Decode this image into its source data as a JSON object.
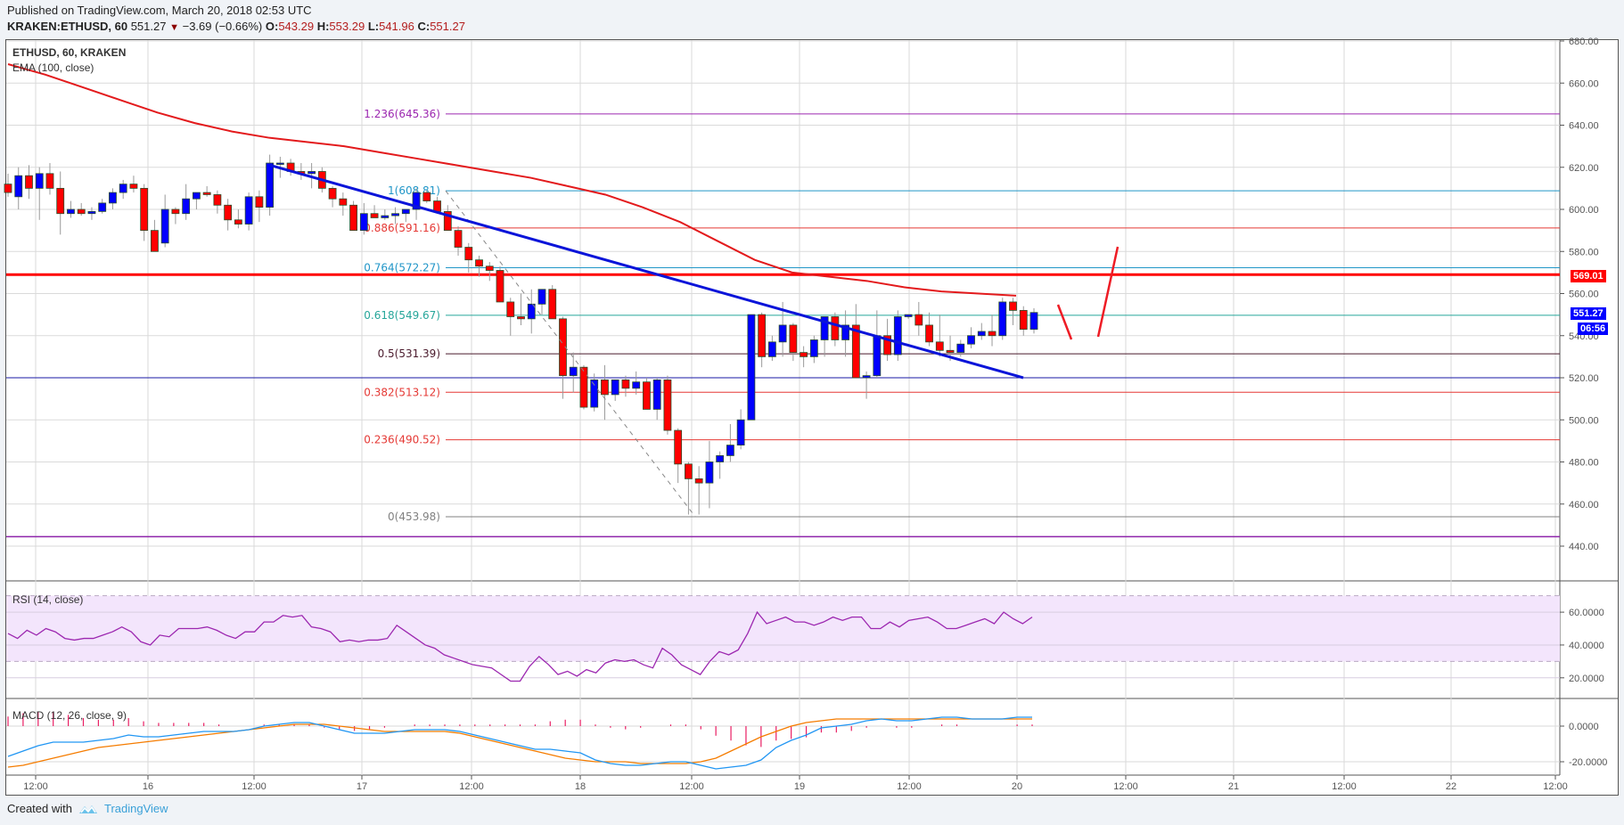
{
  "header": {
    "published": "Published on TradingView.com, March 20, 2018 02:53 UTC",
    "symbol": "KRAKEN:ETHUSD, 60",
    "last": "551.27",
    "change_arrow": "▼",
    "change": "−3.69 (−0.66%)",
    "o_label": "O:",
    "o": "543.29",
    "h_label": "H:",
    "h": "553.29",
    "l_label": "L:",
    "l": "541.96",
    "c_label": "C:",
    "c": "551.27"
  },
  "pane_legend": {
    "title": "ETHUSD, 60, KRAKEN",
    "ema": "EMA (100, close)",
    "rsi": "RSI (14, close)",
    "macd": "MACD (12, 26, close, 9)"
  },
  "badges": {
    "resistance": "569.01",
    "last_price": "551.27",
    "countdown": "06:56"
  },
  "footer": {
    "created_with": "Created with",
    "brand": "TradingView"
  },
  "colors": {
    "up": "#0000ff",
    "down": "#ff0000",
    "ema": "#e31a1c",
    "trendline": "#0a14d9",
    "resistance": "#ff0000",
    "rsi_line": "#9c27b0",
    "rsi_band": "#f3e5fc",
    "macd": "#2196f3",
    "signal": "#f57c00",
    "histogram": "#e91e63"
  },
  "chart_data": [
    {
      "type": "candlestick",
      "title": "ETHUSD, 60, KRAKEN",
      "xlabel": "",
      "ylabel": "Price (USD)",
      "ylim": [
        430,
        685
      ],
      "y_ticks": [
        "680.00",
        "660.00",
        "640.00",
        "620.00",
        "600.00",
        "580.00",
        "560.00",
        "540.00",
        "520.00",
        "500.00",
        "480.00",
        "460.00",
        "440.00"
      ],
      "x_ticks": [
        "12:00",
        "16",
        "12:00",
        "17",
        "12:00",
        "18",
        "12:00",
        "19",
        "12:00",
        "20",
        "12:00",
        "21",
        "12:00",
        "22",
        "12:00"
      ],
      "fibonacci": [
        {
          "level": "1.236",
          "price": 645.36,
          "label": "1.236(645.36)",
          "color": "#9c27b0"
        },
        {
          "level": "1",
          "price": 608.81,
          "label": "1(608.81)",
          "color": "#2196c8"
        },
        {
          "level": "0.886",
          "price": 591.16,
          "label": "0.886(591.16)",
          "color": "#e53935"
        },
        {
          "level": "0.764",
          "price": 572.27,
          "label": "0.764(572.27)",
          "color": "#2196c8"
        },
        {
          "level": "0.618",
          "price": 549.67,
          "label": "0.618(549.67)",
          "color": "#26a69a"
        },
        {
          "level": "0.5",
          "price": 531.39,
          "label": "0.5(531.39)",
          "color": "#4a1a2c"
        },
        {
          "level": "0.382",
          "price": 513.12,
          "label": "0.382(513.12)",
          "color": "#e53935"
        },
        {
          "level": "0.236",
          "price": 490.52,
          "label": "0.236(490.52)",
          "color": "#e53935"
        },
        {
          "level": "0",
          "price": 453.98,
          "label": "0(453.98)",
          "color": "#808080"
        }
      ],
      "horizontal_lines": [
        {
          "price": 569.01,
          "color": "#ff0000",
          "width": 3,
          "note": "resistance"
        },
        {
          "price": 520.0,
          "color": "#1a1aa6",
          "width": 1
        },
        {
          "price": 444.5,
          "color": "#8e24aa",
          "width": 1.5
        }
      ],
      "trendline": {
        "from": {
          "x": "16 ~13:00",
          "price": 621
        },
        "to": {
          "x": "20 ~01:00",
          "price": 520
        }
      },
      "ema_100": [
        669,
        664,
        658,
        652,
        646,
        641,
        637,
        634,
        632,
        630,
        627,
        624,
        621,
        618,
        615,
        611,
        607,
        601,
        594,
        585,
        576,
        570,
        568,
        566,
        563,
        561,
        560,
        559
      ],
      "candles_ohlc_approx": [
        [
          612,
          617,
          606,
          608
        ],
        [
          606,
          620,
          600,
          616
        ],
        [
          616,
          621,
          605,
          610
        ],
        [
          610,
          620,
          595,
          617
        ],
        [
          617,
          622,
          607,
          610
        ],
        [
          610,
          618,
          588,
          598
        ],
        [
          598,
          604,
          596,
          600
        ],
        [
          600,
          603,
          597,
          598
        ],
        [
          598,
          601,
          595,
          599
        ],
        [
          599,
          605,
          598,
          603
        ],
        [
          603,
          610,
          600,
          608
        ],
        [
          608,
          614,
          605,
          612
        ],
        [
          612,
          616,
          608,
          610
        ],
        [
          610,
          612,
          585,
          590
        ],
        [
          590,
          595,
          582,
          580
        ],
        [
          584,
          607,
          582,
          600
        ],
        [
          600,
          601,
          593,
          598
        ],
        [
          598,
          612,
          595,
          605
        ],
        [
          605,
          608,
          600,
          608
        ],
        [
          608,
          611,
          606,
          607
        ],
        [
          607,
          609,
          598,
          602
        ],
        [
          602,
          605,
          590,
          595
        ],
        [
          595,
          600,
          591,
          593
        ],
        [
          593,
          608,
          590,
          606
        ],
        [
          606,
          609,
          594,
          601
        ],
        [
          601,
          626,
          597,
          622
        ],
        [
          622,
          625,
          615,
          622
        ],
        [
          622,
          624,
          616,
          618
        ],
        [
          618,
          622,
          614,
          617
        ],
        [
          617,
          622,
          610,
          618
        ],
        [
          618,
          620,
          608,
          610
        ],
        [
          610,
          611,
          601,
          605
        ],
        [
          605,
          608,
          597,
          602
        ],
        [
          602,
          604,
          590,
          590
        ],
        [
          590,
          603,
          588,
          598
        ],
        [
          598,
          602,
          596,
          596
        ],
        [
          596,
          600,
          595,
          597
        ],
        [
          597,
          601,
          593,
          598
        ],
        [
          598,
          600,
          594,
          600
        ],
        [
          600,
          610,
          595,
          608
        ],
        [
          608,
          609,
          603,
          604
        ],
        [
          604,
          606,
          598,
          599
        ],
        [
          599,
          602,
          592,
          590
        ],
        [
          590,
          592,
          578,
          582
        ],
        [
          582,
          584,
          570,
          576
        ],
        [
          576,
          578,
          568,
          573
        ],
        [
          573,
          575,
          566,
          571
        ],
        [
          571,
          573,
          557,
          556
        ],
        [
          556,
          558,
          540,
          549
        ],
        [
          549,
          560,
          545,
          548
        ],
        [
          548,
          562,
          541,
          555
        ],
        [
          555,
          562,
          550,
          562
        ],
        [
          562,
          564,
          548,
          548
        ],
        [
          548,
          549,
          510,
          521
        ],
        [
          521,
          532,
          513,
          525
        ],
        [
          525,
          526,
          505,
          506
        ],
        [
          506,
          522,
          504,
          519
        ],
        [
          519,
          526,
          500,
          512
        ],
        [
          512,
          519,
          509,
          519
        ],
        [
          519,
          521,
          511,
          515
        ],
        [
          515,
          523,
          512,
          518
        ],
        [
          518,
          520,
          505,
          505
        ],
        [
          505,
          520,
          500,
          519
        ],
        [
          519,
          521,
          493,
          495
        ],
        [
          495,
          496,
          470,
          479
        ],
        [
          479,
          480,
          455,
          472
        ],
        [
          472,
          478,
          455,
          470
        ],
        [
          470,
          490,
          458,
          480
        ],
        [
          480,
          485,
          472,
          483
        ],
        [
          483,
          498,
          480,
          488
        ],
        [
          488,
          505,
          486,
          500
        ],
        [
          500,
          550,
          500,
          550
        ],
        [
          550,
          551,
          525,
          530
        ],
        [
          530,
          540,
          528,
          537
        ],
        [
          537,
          556,
          530,
          545
        ],
        [
          545,
          546,
          528,
          532
        ],
        [
          532,
          535,
          525,
          530
        ],
        [
          530,
          540,
          527,
          538
        ],
        [
          538,
          549,
          530,
          549
        ],
        [
          549,
          551,
          535,
          538
        ],
        [
          538,
          552,
          530,
          545
        ],
        [
          545,
          555,
          522,
          520
        ],
        [
          520,
          523,
          510,
          521
        ],
        [
          521,
          552,
          520,
          540
        ],
        [
          540,
          548,
          528,
          531
        ],
        [
          531,
          552,
          528,
          549
        ],
        [
          549,
          550,
          548,
          550
        ],
        [
          550,
          556,
          540,
          545
        ],
        [
          545,
          551,
          535,
          537
        ],
        [
          537,
          550,
          530,
          533
        ],
        [
          533,
          540,
          528,
          532
        ],
        [
          532,
          538,
          530,
          536
        ],
        [
          536,
          544,
          534,
          540
        ],
        [
          540,
          546,
          538,
          542
        ],
        [
          542,
          550,
          535,
          540
        ],
        [
          540,
          558,
          538,
          556
        ],
        [
          556,
          558,
          545,
          552
        ],
        [
          552,
          554,
          540,
          543
        ],
        [
          543,
          553,
          541,
          551
        ]
      ]
    },
    {
      "type": "line",
      "title": "RSI (14, close)",
      "ylim": [
        15,
        72
      ],
      "y_ticks": [
        "60.0000",
        "40.0000",
        "20.0000"
      ],
      "bands": {
        "upper": 70,
        "lower": 30
      },
      "values": [
        47,
        44,
        49,
        46,
        50,
        48,
        44,
        43,
        44,
        44,
        46,
        48,
        51,
        48,
        42,
        40,
        46,
        45,
        50,
        50,
        50,
        51,
        49,
        46,
        44,
        48,
        48,
        54,
        54,
        58,
        57,
        58,
        51,
        50,
        48,
        42,
        43,
        42,
        43,
        43,
        44,
        52,
        48,
        44,
        40,
        38,
        34,
        32,
        30,
        28,
        27,
        26,
        22,
        18,
        18,
        27,
        33,
        28,
        22,
        24,
        21,
        25,
        23,
        29,
        31,
        30,
        31,
        28,
        26,
        38,
        34,
        28,
        25,
        22,
        30,
        36,
        34,
        37,
        47,
        60,
        53,
        55,
        57,
        54,
        54,
        52,
        54,
        57,
        55,
        57,
        57,
        50,
        50,
        54,
        51,
        55,
        56,
        57,
        54,
        50,
        50,
        52,
        54,
        56,
        53,
        60,
        56,
        53,
        57
      ]
    },
    {
      "type": "line",
      "title": "MACD (12, 26, close, 9)",
      "ylim": [
        -26,
        16
      ],
      "y_ticks": [
        "0.0000",
        "-20.0000"
      ],
      "series": [
        {
          "name": "MACD",
          "values": [
            -17,
            -14,
            -11,
            -9,
            -9,
            -9,
            -8,
            -7,
            -5,
            -6,
            -6,
            -5,
            -4,
            -3,
            -3,
            -3,
            -2,
            0,
            1,
            2,
            2,
            0,
            -2,
            -4,
            -4,
            -4,
            -3,
            -2,
            -2,
            -2,
            -3,
            -5,
            -7,
            -9,
            -11,
            -13,
            -13,
            -14,
            -15,
            -19,
            -21,
            -22,
            -22,
            -21,
            -20,
            -20,
            -22,
            -24,
            -23,
            -22,
            -19,
            -12,
            -8,
            -5,
            -1,
            0,
            1,
            3,
            4,
            3,
            3,
            4,
            5,
            5,
            4,
            4,
            4,
            5,
            5
          ]
        },
        {
          "name": "Signal",
          "values": [
            -23,
            -22,
            -20,
            -18,
            -16,
            -14,
            -12,
            -11,
            -10,
            -9,
            -8,
            -7,
            -6,
            -5,
            -4,
            -3,
            -2,
            -1,
            0,
            1,
            1,
            1,
            0,
            -1,
            -2,
            -3,
            -3,
            -3,
            -3,
            -3,
            -4,
            -6,
            -8,
            -10,
            -12,
            -14,
            -16,
            -18,
            -19,
            -20,
            -20,
            -20,
            -21,
            -21,
            -21,
            -21,
            -20,
            -18,
            -14,
            -10,
            -6,
            -3,
            0,
            2,
            3,
            4,
            4,
            4,
            4,
            4,
            4,
            4,
            4,
            4,
            4,
            4,
            4,
            4,
            4
          ]
        }
      ]
    }
  ]
}
